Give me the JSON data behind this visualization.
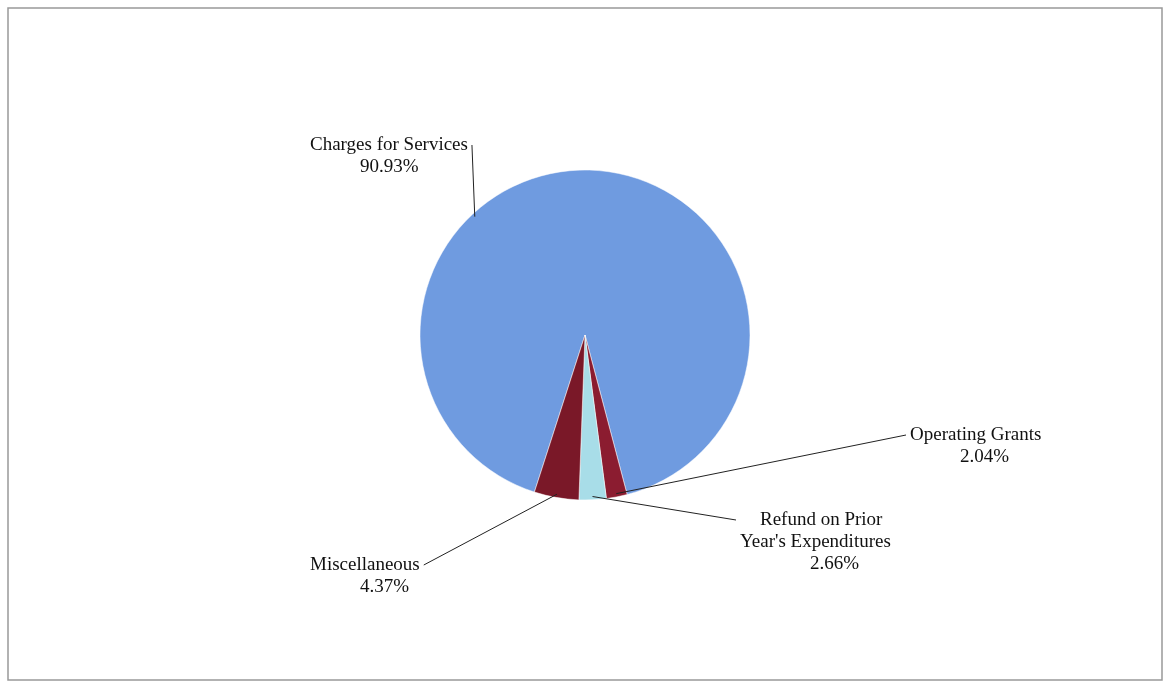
{
  "chart_data": {
    "type": "pie",
    "categories": [
      "Charges for Services",
      "Operating Grants",
      "Refund on Prior Year's Expenditures",
      "Miscellaneous"
    ],
    "values": [
      90.93,
      2.04,
      2.66,
      4.37
    ],
    "colors": [
      "#6f9be0",
      "#8b1c30",
      "#a8dde8",
      "#7a1828"
    ],
    "value_labels": [
      "90.93%",
      "2.04%",
      "2.66%",
      "4.37%"
    ],
    "legend": false
  }
}
